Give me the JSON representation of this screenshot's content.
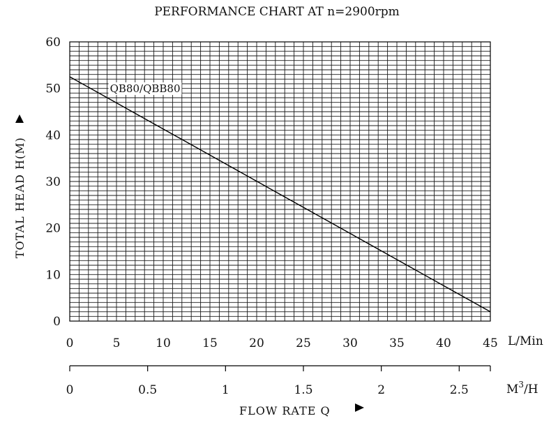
{
  "chart_data": {
    "type": "line",
    "title": "PERFORMANCE CHART AT n=2900rpm",
    "xlabel": "FLOW RATE Q",
    "ylabel": "TOTAL HEAD H(M)",
    "x_unit": "L/Min",
    "x2_unit_base": "M",
    "x2_unit_sup": "3",
    "x2_unit_tail": "/H",
    "xlim": [
      0,
      45
    ],
    "ylim": [
      0,
      60
    ],
    "x_ticks": [
      "0",
      "5",
      "10",
      "15",
      "20",
      "25",
      "30",
      "35",
      "40",
      "45"
    ],
    "y_ticks": [
      "0",
      "10",
      "20",
      "30",
      "40",
      "50",
      "60"
    ],
    "x2_ticks": [
      {
        "label": "0",
        "value": 0
      },
      {
        "label": "0.5",
        "value": 0.5
      },
      {
        "label": "1",
        "value": 1
      },
      {
        "label": "1.5",
        "value": 1.5
      },
      {
        "label": "2",
        "value": 2
      },
      {
        "label": "2.5",
        "value": 2.5
      }
    ],
    "grid": true,
    "series": [
      {
        "name": "QB80/QBB80",
        "x": [
          0,
          45
        ],
        "y": [
          52.5,
          2
        ]
      }
    ]
  }
}
